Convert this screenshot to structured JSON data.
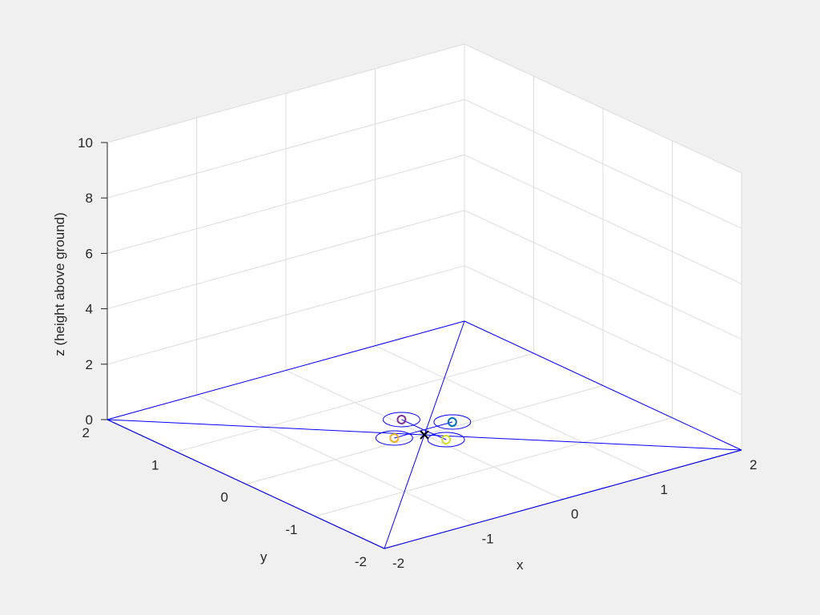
{
  "chart_data": {
    "type": "line",
    "projection": "3d",
    "xlabel": "x",
    "ylabel": "y",
    "zlabel": "z (height above ground)",
    "xlim": [
      -2,
      2
    ],
    "ylim": [
      -2,
      2
    ],
    "zlim": [
      0,
      10
    ],
    "xticks": [
      "-2",
      "-1",
      "0",
      "1",
      "2"
    ],
    "yticks": [
      "-2",
      "-1",
      "0",
      "1",
      "2"
    ],
    "zticks": [
      "0",
      "2",
      "4",
      "6",
      "8",
      "10"
    ],
    "grid": true,
    "floor_lines": {
      "color": "#0000ff",
      "segments": [
        [
          [
            -2,
            -2
          ],
          [
            2,
            -2
          ]
        ],
        [
          [
            2,
            -2
          ],
          [
            2,
            2
          ]
        ],
        [
          [
            2,
            2
          ],
          [
            -2,
            2
          ]
        ],
        [
          [
            -2,
            2
          ],
          [
            -2,
            -2
          ]
        ],
        [
          [
            -2,
            -2
          ],
          [
            2,
            2
          ]
        ],
        [
          [
            -2,
            2
          ],
          [
            2,
            -2
          ]
        ]
      ]
    },
    "target_marker": {
      "x": 0,
      "y": 0,
      "z": 0,
      "symbol": "x",
      "color": "#000000"
    },
    "quadcopter": {
      "center": [
        0.07,
        0.1,
        0
      ],
      "rotor_color": "#0000ff",
      "rotors": [
        {
          "x": 0.07,
          "y": 0.42,
          "color": "#7e2f8e"
        },
        {
          "x": 0.39,
          "y": 0.1,
          "color": "#0072bd"
        },
        {
          "x": -0.26,
          "y": 0.1,
          "color": "#edb120"
        },
        {
          "x": 0.08,
          "y": -0.21,
          "color": "#d4e021"
        }
      ]
    }
  }
}
